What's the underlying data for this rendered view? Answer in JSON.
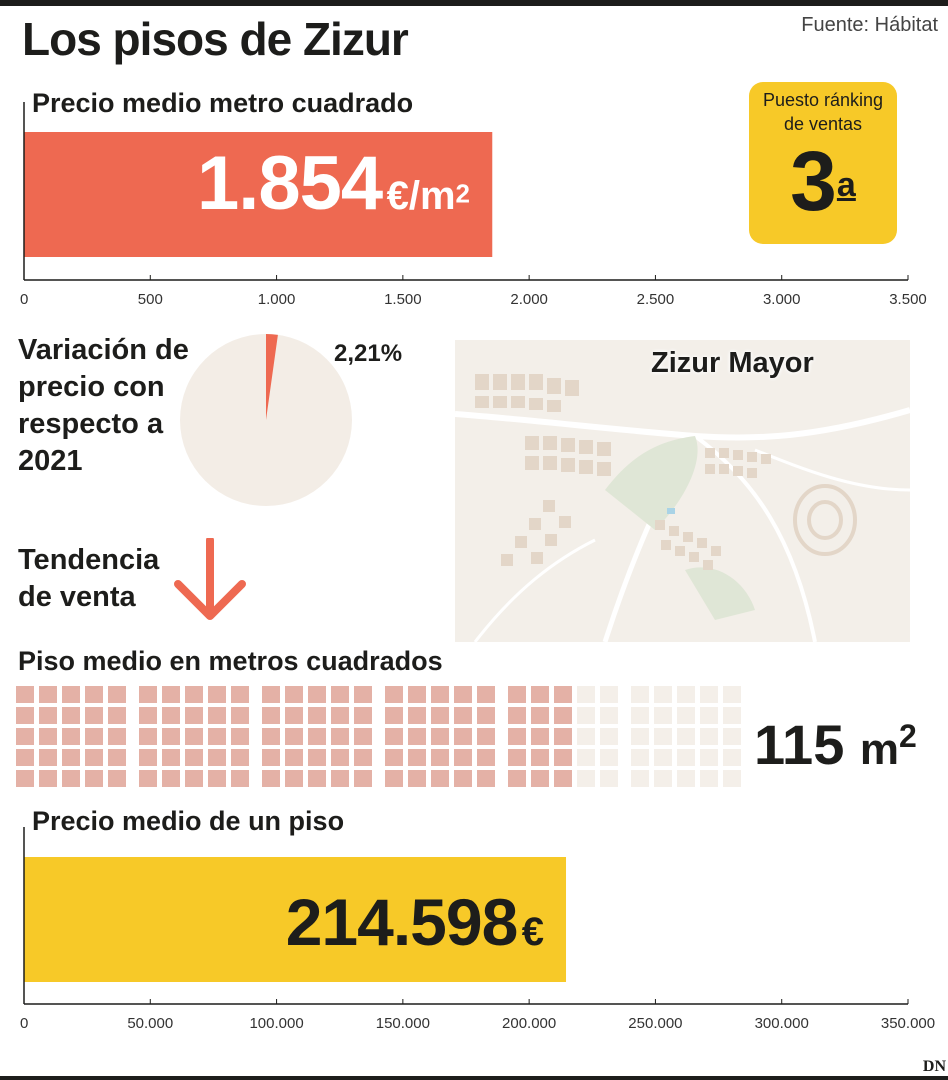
{
  "title": "Los pisos de Zizur",
  "source": "Fuente: Hábitat",
  "price_m2": {
    "heading": "Precio medio metro cuadrado",
    "value_number": "1.854",
    "value_unit": "€/m",
    "value_unit_sup": "2"
  },
  "ranking": {
    "label": "Puesto ránking de ventas",
    "value": "3",
    "suffix": "a"
  },
  "variation": {
    "label": "Variación de precio con respecto a 2021",
    "pct_label": "2,21%"
  },
  "trend": {
    "label": "Tendencia de venta",
    "direction": "down",
    "icon": "arrow-down-icon"
  },
  "map": {
    "label": "Zizur Mayor"
  },
  "area": {
    "heading": "Piso medio en metros cuadrados",
    "value_number": "115",
    "value_unit": "m",
    "value_unit_sup": "2"
  },
  "price_flat": {
    "heading": "Precio medio de un piso",
    "value_number": "214.598",
    "value_unit": "€"
  },
  "logo": "DN",
  "colors": {
    "red": "#ee6951",
    "yellow": "#f7c928",
    "pie_bg": "#f3ede6",
    "waffle_on": "#e4b1a6",
    "waffle_off": "#f4efe9",
    "map_bg": "#f3efe9"
  },
  "chart_data": [
    {
      "type": "bar",
      "orientation": "horizontal",
      "title": "Precio medio metro cuadrado",
      "values": [
        1854
      ],
      "xlim": [
        0,
        3500
      ],
      "ticks": [
        0,
        500,
        1000,
        1500,
        2000,
        2500,
        3000,
        3500
      ],
      "tick_labels": [
        "0",
        "500",
        "1.000",
        "1.500",
        "2.000",
        "2.500",
        "3.000",
        "3.500"
      ]
    },
    {
      "type": "pie",
      "title": "Variación de precio con respecto a 2021",
      "values": [
        2.21,
        97.79
      ]
    },
    {
      "type": "waffle",
      "title": "Piso medio en metros cuadrados",
      "value": 115,
      "total": 155,
      "grid_rows": 5,
      "grid_cols": 31
    },
    {
      "type": "bar",
      "orientation": "horizontal",
      "title": "Precio medio de un piso",
      "values": [
        214598
      ],
      "xlim": [
        0,
        350000
      ],
      "ticks": [
        0,
        50000,
        100000,
        150000,
        200000,
        250000,
        300000,
        350000
      ],
      "tick_labels": [
        "0",
        "50.000",
        "100.000",
        "150.000",
        "200.000",
        "250.000",
        "300.000",
        "350.000"
      ]
    }
  ]
}
